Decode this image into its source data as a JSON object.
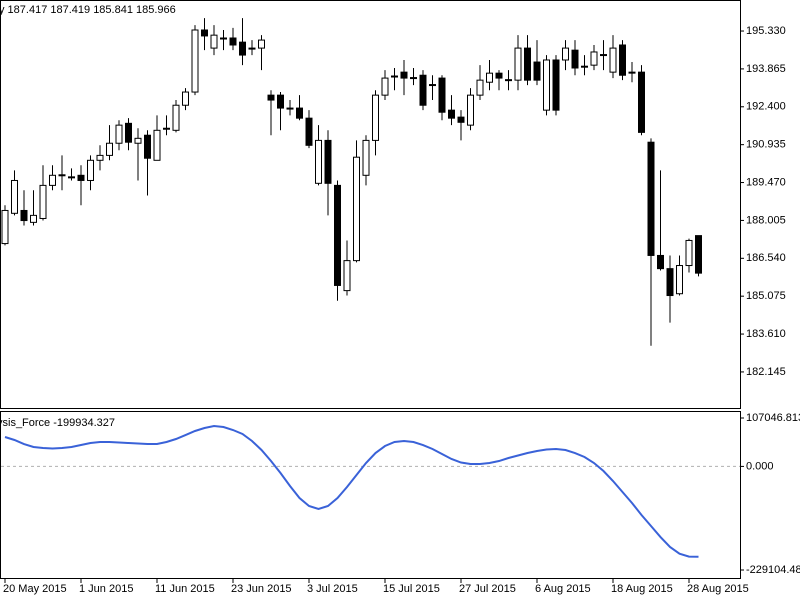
{
  "chart_data": [
    {
      "type": "candlestick",
      "title": "y  187.417 187.419 185.841 185.966",
      "categories": [
        "20 May 2015",
        null,
        null,
        null,
        null,
        null,
        null,
        null,
        "1 Jun 2015",
        null,
        null,
        null,
        null,
        null,
        null,
        null,
        "11 Jun 2015",
        null,
        null,
        null,
        null,
        null,
        null,
        null,
        "23 Jun 2015",
        null,
        null,
        null,
        null,
        null,
        null,
        null,
        "3 Jul 2015",
        null,
        null,
        null,
        null,
        null,
        null,
        null,
        "15 Jul 2015",
        null,
        null,
        null,
        null,
        null,
        null,
        null,
        "27 Jul 2015",
        null,
        null,
        null,
        null,
        null,
        null,
        null,
        "6 Aug 2015",
        null,
        null,
        null,
        null,
        null,
        null,
        null,
        "18 Aug 2015",
        null,
        null,
        null,
        null,
        null,
        null,
        null,
        "28 Aug 2015",
        null
      ],
      "open": [
        187.11,
        188.28,
        188.39,
        187.93,
        188.08,
        189.36,
        189.75,
        189.67,
        189.75,
        189.55,
        190.33,
        190.52,
        190.99,
        191.76,
        190.99,
        191.3,
        190.33,
        191.55,
        191.49,
        192.46,
        192.97,
        195.37,
        194.67,
        195.06,
        195.06,
        194.9,
        194.67,
        194.67,
        192.85,
        192.85,
        192.35,
        192.35,
        191.96,
        189.44,
        191.1,
        189.36,
        185.29,
        186.45,
        189.75,
        191.1,
        192.85,
        193.59,
        193.74,
        193.51,
        193.62,
        193.24,
        193.51,
        192.27,
        192.0,
        191.69,
        192.85,
        193.35,
        193.7,
        193.43,
        193.43,
        194.67,
        194.13,
        192.27,
        194.21,
        194.21,
        194.59,
        193.97,
        194.01,
        194.4,
        193.74,
        194.79,
        193.74,
        193.74,
        191.03,
        186.65,
        186.14,
        185.17,
        186.26,
        187.417
      ],
      "high": [
        188.59,
        189.94,
        189.17,
        189.17,
        190.14,
        190.14,
        190.52,
        190.02,
        190.14,
        190.52,
        190.91,
        191.69,
        191.88,
        191.96,
        191.57,
        191.49,
        192.07,
        192.07,
        192.66,
        193.12,
        195.56,
        195.83,
        195.56,
        195.37,
        195.45,
        195.83,
        194.98,
        195.17,
        193.04,
        192.97,
        192.66,
        192.85,
        192.27,
        191.69,
        191.49,
        189.55,
        187.23,
        191.1,
        191.3,
        193.04,
        193.82,
        193.9,
        194.21,
        193.9,
        193.82,
        193.62,
        193.62,
        192.85,
        192.27,
        193.12,
        194.01,
        194.21,
        193.82,
        193.82,
        195.17,
        195.17,
        194.98,
        194.4,
        194.4,
        194.98,
        194.98,
        194.4,
        194.79,
        194.98,
        195.17,
        194.98,
        194.13,
        194.01,
        191.18,
        189.94,
        186.65,
        186.65,
        187.3,
        187.419
      ],
      "low": [
        187.04,
        188.2,
        187.81,
        187.81,
        188.0,
        189.17,
        189.17,
        189.55,
        188.59,
        189.17,
        189.94,
        190.33,
        190.72,
        190.72,
        189.55,
        188.97,
        190.33,
        191.3,
        191.41,
        192.27,
        192.85,
        194.59,
        194.4,
        194.59,
        194.59,
        194.01,
        194.4,
        193.82,
        191.3,
        191.49,
        192.07,
        191.88,
        190.8,
        189.36,
        188.2,
        184.9,
        185.1,
        186.38,
        189.36,
        190.52,
        192.66,
        193.04,
        192.85,
        193.24,
        192.27,
        192.66,
        191.88,
        191.69,
        191.1,
        191.49,
        192.66,
        193.04,
        193.04,
        193.04,
        193.04,
        193.24,
        193.24,
        192.07,
        192.07,
        193.82,
        193.62,
        193.62,
        193.82,
        193.82,
        193.51,
        193.43,
        193.35,
        191.3,
        183.16,
        186.07,
        184.05,
        185.1,
        185.99,
        185.841
      ],
      "close": [
        188.39,
        189.55,
        188.0,
        188.2,
        189.36,
        189.75,
        189.77,
        189.69,
        189.55,
        190.33,
        190.52,
        190.99,
        191.69,
        191.03,
        191.18,
        190.41,
        191.49,
        191.57,
        192.46,
        192.97,
        195.37,
        195.14,
        195.17,
        195.04,
        194.79,
        194.4,
        194.65,
        194.98,
        192.66,
        192.35,
        192.33,
        191.96,
        190.91,
        191.1,
        189.44,
        185.49,
        186.45,
        190.45,
        191.1,
        192.85,
        193.51,
        193.57,
        193.51,
        193.53,
        192.46,
        193.26,
        192.19,
        191.96,
        191.8,
        192.85,
        193.43,
        193.7,
        193.51,
        193.45,
        194.67,
        193.43,
        193.43,
        194.21,
        192.27,
        194.67,
        193.9,
        193.95,
        194.52,
        194.42,
        194.67,
        193.62,
        193.72,
        191.41,
        186.65,
        186.14,
        185.1,
        186.26,
        187.23,
        185.966
      ],
      "up_color": "#ffffff",
      "down_color": "#000000",
      "wick_color": "#000000",
      "ylim": [
        180.75,
        196.53
      ],
      "yticks": [
        {
          "value": 195.33,
          "label": "195.330"
        },
        {
          "value": 193.865,
          "label": "193.865"
        },
        {
          "value": 192.4,
          "label": "192.400"
        },
        {
          "value": 190.935,
          "label": "190.935"
        },
        {
          "value": 189.47,
          "label": "189.470"
        },
        {
          "value": 188.005,
          "label": "188.005"
        },
        {
          "value": 186.54,
          "label": "186.540"
        },
        {
          "value": 185.075,
          "label": "185.075"
        },
        {
          "value": 183.61,
          "label": "183.610"
        },
        {
          "value": 182.145,
          "label": "182.145"
        }
      ],
      "grid": false
    },
    {
      "type": "line",
      "title": "ysis_Force -199934.327",
      "color": "#3a62d8",
      "values": [
        65000,
        58400,
        49500,
        42900,
        40700,
        39600,
        40700,
        42900,
        47300,
        51700,
        54000,
        54000,
        52900,
        51700,
        50600,
        49500,
        49500,
        54000,
        60600,
        69400,
        78300,
        84900,
        89300,
        87100,
        80500,
        71700,
        56200,
        36300,
        11900,
        -14600,
        -43300,
        -69900,
        -87600,
        -94200,
        -87600,
        -69900,
        -45600,
        -19000,
        7500,
        29600,
        45100,
        54000,
        56200,
        54000,
        47300,
        38500,
        27400,
        16400,
        8600,
        5300,
        5300,
        7500,
        11900,
        18600,
        24100,
        29600,
        34100,
        37400,
        38500,
        36300,
        29600,
        20800,
        7500,
        -10200,
        -32300,
        -56600,
        -80900,
        -107500,
        -131800,
        -156200,
        -178200,
        -193000,
        -199500,
        -199934.327
      ],
      "ylim": [
        -229104.48,
        107046.813
      ],
      "yticks": [
        {
          "value": 107046.813,
          "label": "107046.813"
        },
        {
          "value": 0,
          "label": "0.000"
        },
        {
          "value": -229104.48,
          "label": "-229104.48"
        }
      ],
      "grid": false
    }
  ]
}
